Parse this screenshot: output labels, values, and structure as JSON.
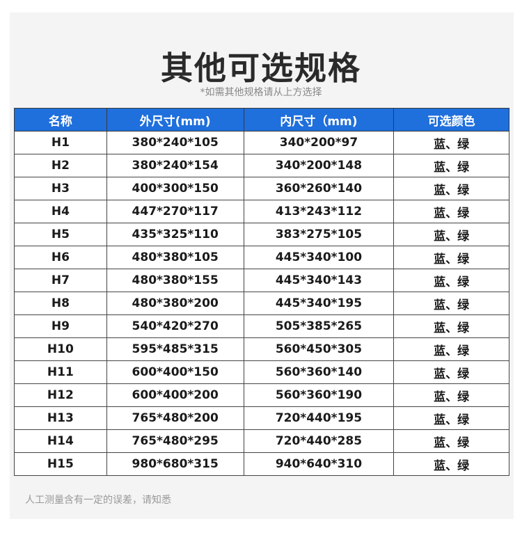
{
  "title": "其他可选规格",
  "subtitle": "*如需其他规格请从上方选择",
  "table": {
    "headers": [
      "名称",
      "外尺寸(mm)",
      "内尺寸（mm)",
      "可选颜色"
    ],
    "rows": [
      [
        "H1",
        "380*240*105",
        "340*200*97",
        "蓝、绿"
      ],
      [
        "H2",
        "380*240*154",
        "340*200*148",
        "蓝、绿"
      ],
      [
        "H3",
        "400*300*150",
        "360*260*140",
        "蓝、绿"
      ],
      [
        "H4",
        "447*270*117",
        "413*243*112",
        "蓝、绿"
      ],
      [
        "H5",
        "435*325*110",
        "383*275*105",
        "蓝、绿"
      ],
      [
        "H6",
        "480*380*105",
        "445*340*100",
        "蓝、绿"
      ],
      [
        "H7",
        "480*380*155",
        "445*340*143",
        "蓝、绿"
      ],
      [
        "H8",
        "480*380*200",
        "445*340*195",
        "蓝、绿"
      ],
      [
        "H9",
        "540*420*270",
        "505*385*265",
        "蓝、绿"
      ],
      [
        "H10",
        "595*485*315",
        "560*450*305",
        "蓝、绿"
      ],
      [
        "H11",
        "600*400*150",
        "560*360*140",
        "蓝、绿"
      ],
      [
        "H12",
        "600*400*200",
        "560*360*190",
        "蓝、绿"
      ],
      [
        "H13",
        "765*480*200",
        "720*440*195",
        "蓝、绿"
      ],
      [
        "H14",
        "765*480*295",
        "720*440*285",
        "蓝、绿"
      ],
      [
        "H15",
        "980*680*315",
        "940*640*310",
        "蓝、绿"
      ]
    ]
  },
  "note": "人工测量含有一定的误差，请知悉",
  "colors": {
    "header_bg": "#1f6fdc",
    "panel_bg": "#f4f4f4"
  }
}
